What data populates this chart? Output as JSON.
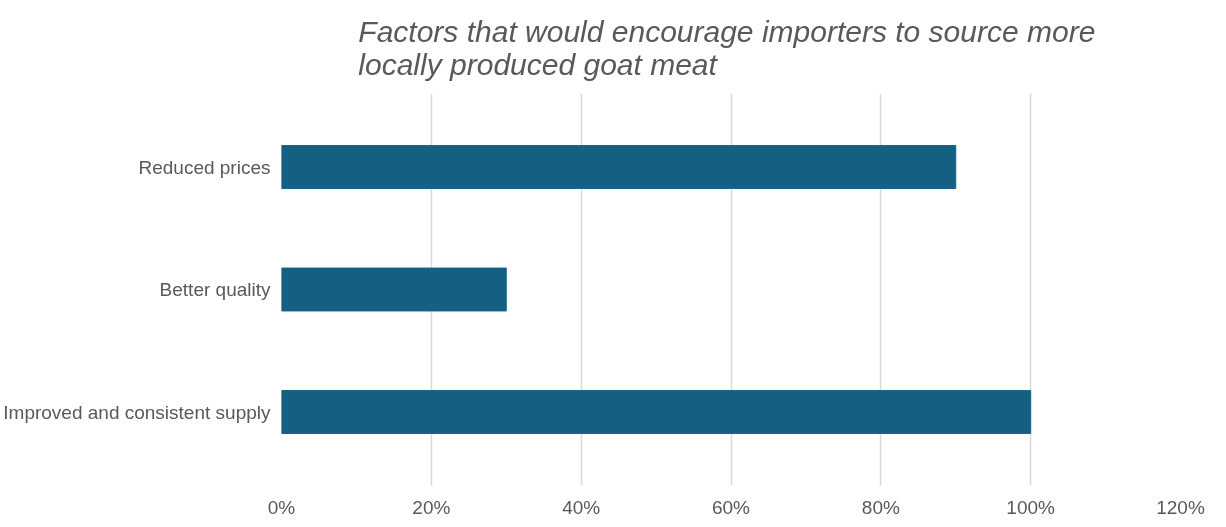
{
  "chart_data": {
    "type": "bar",
    "orientation": "horizontal",
    "title": "Factors that would encourage importers to  source more locally produced goat meat",
    "categories": [
      "Reduced prices",
      "Better quality",
      "Improved and consistent supply"
    ],
    "values": [
      90,
      30,
      100
    ],
    "color": "#156082",
    "xlim": [
      0,
      120
    ],
    "xticks": [
      {
        "value": 0,
        "label": "0%"
      },
      {
        "value": 20,
        "label": "20%"
      },
      {
        "value": 40,
        "label": "40%"
      },
      {
        "value": 60,
        "label": "60%"
      },
      {
        "value": 80,
        "label": "80%"
      },
      {
        "value": 100,
        "label": "100%"
      },
      {
        "value": 120,
        "label": "120%"
      }
    ],
    "grid": "x"
  }
}
